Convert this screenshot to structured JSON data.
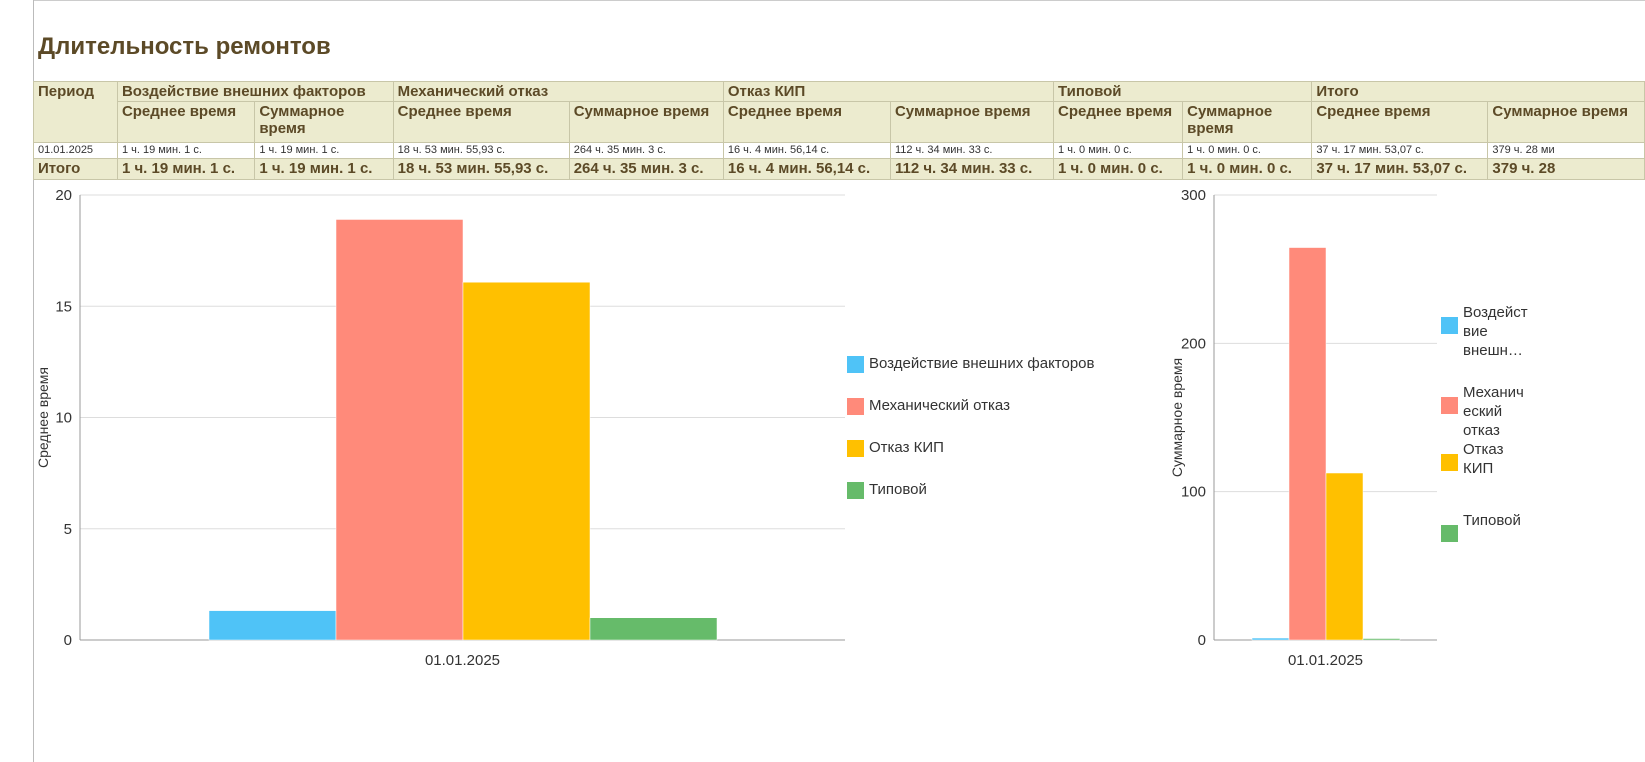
{
  "title": "Длительность ремонтов",
  "table": {
    "period_header": "Период",
    "groups": [
      "Воздействие внешних факторов",
      "Механический отказ",
      "Отказ КИП",
      "Типовой",
      "Итого"
    ],
    "sub": [
      "Среднее время",
      "Суммарное время"
    ],
    "rows": [
      {
        "period": "01.01.2025",
        "values": [
          "1 ч. 19 мин. 1 с.",
          "1 ч. 19 мин. 1 с.",
          "18 ч. 53 мин. 55,93 с.",
          "264 ч. 35 мин. 3 с.",
          "16 ч. 4 мин. 56,14 с.",
          "112 ч. 34 мин. 33 с.",
          "1 ч. 0 мин. 0 с.",
          "1 ч. 0 мин. 0 с.",
          "37 ч. 17 мин. 53,07 с.",
          "379 ч. 28 ми"
        ]
      }
    ],
    "total": {
      "label": "Итого",
      "values": [
        "1 ч. 19 мин. 1 с.",
        "1 ч. 19 мин. 1 с.",
        "18 ч. 53 мин. 55,93 с.",
        "264 ч. 35 мин. 3 с.",
        "16 ч. 4 мин. 56,14 с.",
        "112 ч. 34 мин. 33 с.",
        "1 ч. 0 мин. 0 с.",
        "1 ч. 0 мин. 0 с.",
        "37 ч. 17 мин. 53,07 с.",
        "379 ч. 28"
      ]
    }
  },
  "chart_data": [
    {
      "type": "bar",
      "ylabel": "Среднее время",
      "xlabel": "",
      "categories": [
        "01.01.2025"
      ],
      "ylim": [
        0,
        20
      ],
      "yticks": [
        0,
        5,
        10,
        15,
        20
      ],
      "legend": "right",
      "series": [
        {
          "name": "Воздействие внешних факторов",
          "values": [
            1.32
          ],
          "color": "#4fc3f7"
        },
        {
          "name": "Механический отказ",
          "values": [
            18.9
          ],
          "color": "#ff8a7a"
        },
        {
          "name": "Отказ КИП",
          "values": [
            16.08
          ],
          "color": "#ffc000"
        },
        {
          "name": "Типовой",
          "values": [
            1.0
          ],
          "color": "#66bb6a"
        }
      ]
    },
    {
      "type": "bar",
      "ylabel": "Суммарное время",
      "xlabel": "",
      "categories": [
        "01.01.2025"
      ],
      "ylim": [
        0,
        300
      ],
      "yticks": [
        0,
        100,
        200,
        300
      ],
      "legend": "right",
      "series": [
        {
          "name": "Воздейст вие внешн…",
          "values": [
            1.32
          ],
          "color": "#4fc3f7"
        },
        {
          "name": "Механич еский отказ",
          "values": [
            264.58
          ],
          "color": "#ff8a7a"
        },
        {
          "name": "Отказ КИП",
          "values": [
            112.58
          ],
          "color": "#ffc000"
        },
        {
          "name": "Типовой",
          "values": [
            1.0
          ],
          "color": "#66bb6a"
        }
      ]
    }
  ]
}
